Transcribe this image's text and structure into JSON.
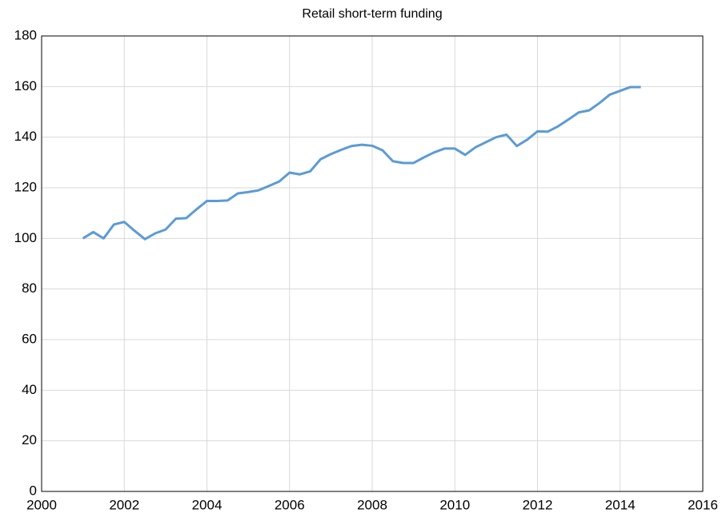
{
  "chart_data": {
    "type": "line",
    "title": "Retail short-term funding",
    "x": [
      2001,
      2001.25,
      2001.5,
      2001.75,
      2002,
      2002.25,
      2002.5,
      2002.75,
      2003,
      2003.25,
      2003.5,
      2003.75,
      2004,
      2004.25,
      2004.5,
      2004.75,
      2005,
      2005.25,
      2005.5,
      2005.75,
      2006,
      2006.25,
      2006.5,
      2006.75,
      2007,
      2007.25,
      2007.5,
      2007.75,
      2008,
      2008.25,
      2008.5,
      2008.75,
      2009,
      2009.25,
      2009.5,
      2009.75,
      2010,
      2010.25,
      2010.5,
      2010.75,
      2011,
      2011.25,
      2011.5,
      2011.75,
      2012,
      2012.25,
      2012.5,
      2012.75,
      2013,
      2013.25,
      2013.5,
      2013.75,
      2014,
      2014.25,
      2014.5
    ],
    "series": [
      {
        "color": "#5b9bd5",
        "values": [
          100,
          102.5,
          100,
          105.5,
          106.5,
          103,
          99.7,
          102,
          103.5,
          107.8,
          108,
          111.5,
          114.8,
          114.8,
          115,
          117.8,
          118.3,
          119,
          120.7,
          122.5,
          126,
          125.3,
          126.5,
          131.3,
          133.3,
          135,
          136.5,
          137,
          136.6,
          134.8,
          130.5,
          129.8,
          129.8,
          132,
          134,
          135.5,
          135.5,
          133,
          136,
          138,
          140,
          141,
          136.5,
          139,
          142.3,
          142.2,
          144.3,
          147,
          149.8,
          150.6,
          153.5,
          156.8,
          158.3,
          159.8,
          159.8
        ]
      }
    ],
    "xlim": [
      2000,
      2016
    ],
    "xticks": [
      2000,
      2002,
      2004,
      2006,
      2008,
      2010,
      2012,
      2014,
      2016
    ],
    "ylim": [
      0,
      180
    ],
    "yticks": [
      0,
      20,
      40,
      60,
      80,
      100,
      120,
      140,
      160,
      180
    ],
    "grid": true
  }
}
